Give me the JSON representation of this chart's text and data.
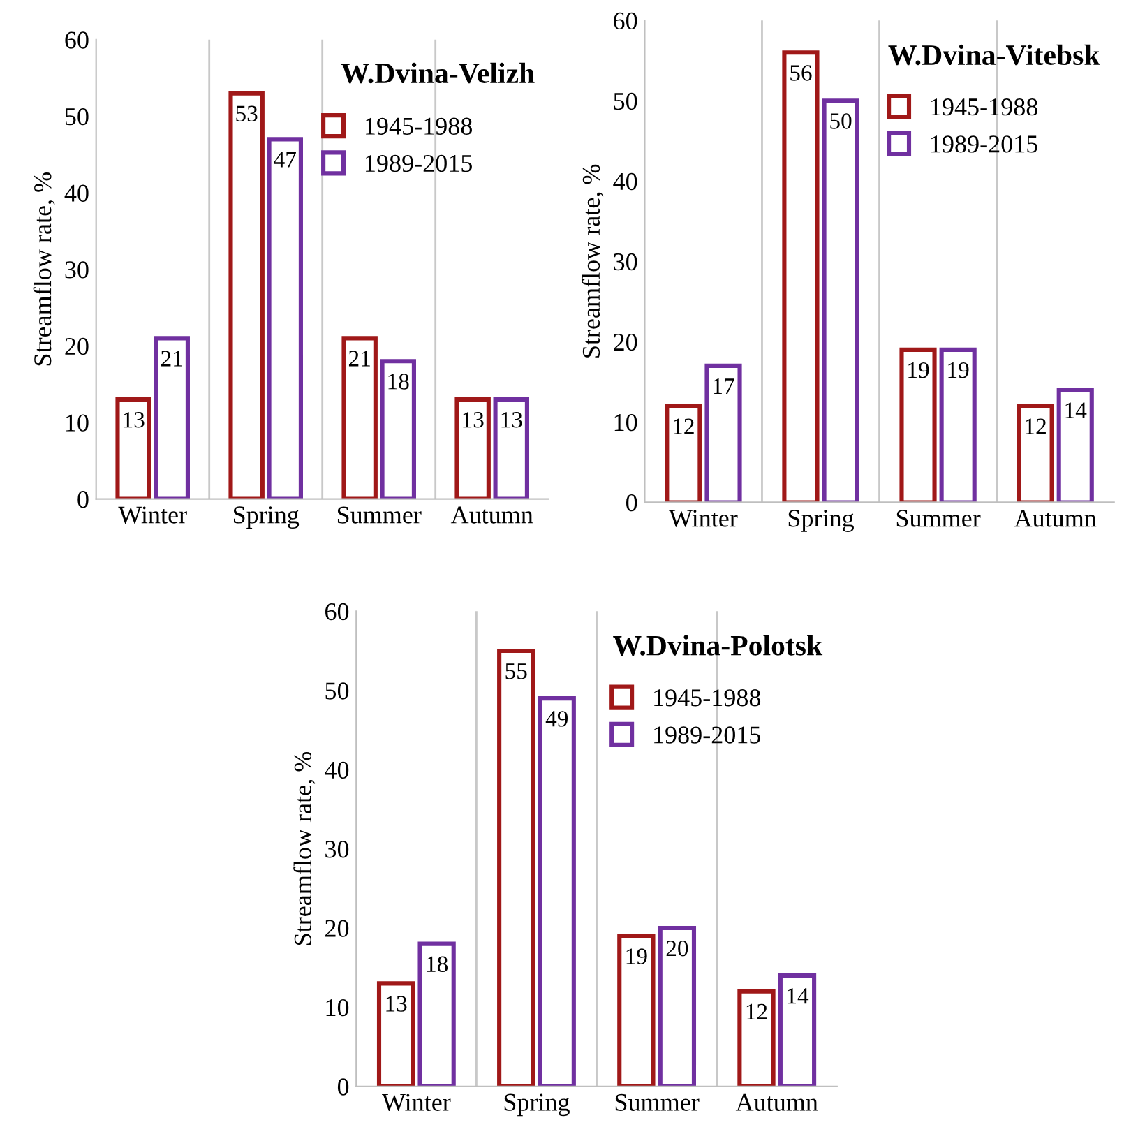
{
  "chart_data": [
    {
      "type": "bar",
      "title": "W.Dvina-Velizh",
      "ylabel": "Streamflow rate, %",
      "categories": [
        "Winter",
        "Spring",
        "Summer",
        "Autumn"
      ],
      "series": [
        {
          "name": "1945-1988",
          "color": "#a01818",
          "values": [
            13,
            53,
            21,
            13
          ]
        },
        {
          "name": "1989-2015",
          "color": "#7030a0",
          "values": [
            21,
            47,
            18,
            13
          ]
        }
      ],
      "ylim": [
        0,
        60
      ],
      "yticks": [
        0,
        10,
        20,
        30,
        40,
        50,
        60
      ],
      "grid": "x",
      "legend": "top right",
      "data_labels": true
    },
    {
      "type": "bar",
      "title": "W.Dvina-Vitebsk",
      "ylabel": "Streamflow rate, %",
      "categories": [
        "Winter",
        "Spring",
        "Summer",
        "Autumn"
      ],
      "series": [
        {
          "name": "1945-1988",
          "color": "#a01818",
          "values": [
            12,
            56,
            19,
            12
          ]
        },
        {
          "name": "1989-2015",
          "color": "#7030a0",
          "values": [
            17,
            50,
            19,
            14
          ]
        }
      ],
      "ylim": [
        0,
        60
      ],
      "yticks": [
        0,
        10,
        20,
        30,
        40,
        50,
        60
      ],
      "grid": "x",
      "legend": "top right",
      "data_labels": true
    },
    {
      "type": "bar",
      "title": "W.Dvina-Polotsk",
      "ylabel": "Streamflow rate, %",
      "categories": [
        "Winter",
        "Spring",
        "Summer",
        "Autumn"
      ],
      "series": [
        {
          "name": "1945-1988",
          "color": "#a01818",
          "values": [
            13,
            55,
            19,
            12
          ]
        },
        {
          "name": "1989-2015",
          "color": "#7030a0",
          "values": [
            18,
            49,
            20,
            14
          ]
        }
      ],
      "ylim": [
        0,
        60
      ],
      "yticks": [
        0,
        10,
        20,
        30,
        40,
        50,
        60
      ],
      "grid": "x",
      "legend": "top right",
      "data_labels": true
    }
  ]
}
